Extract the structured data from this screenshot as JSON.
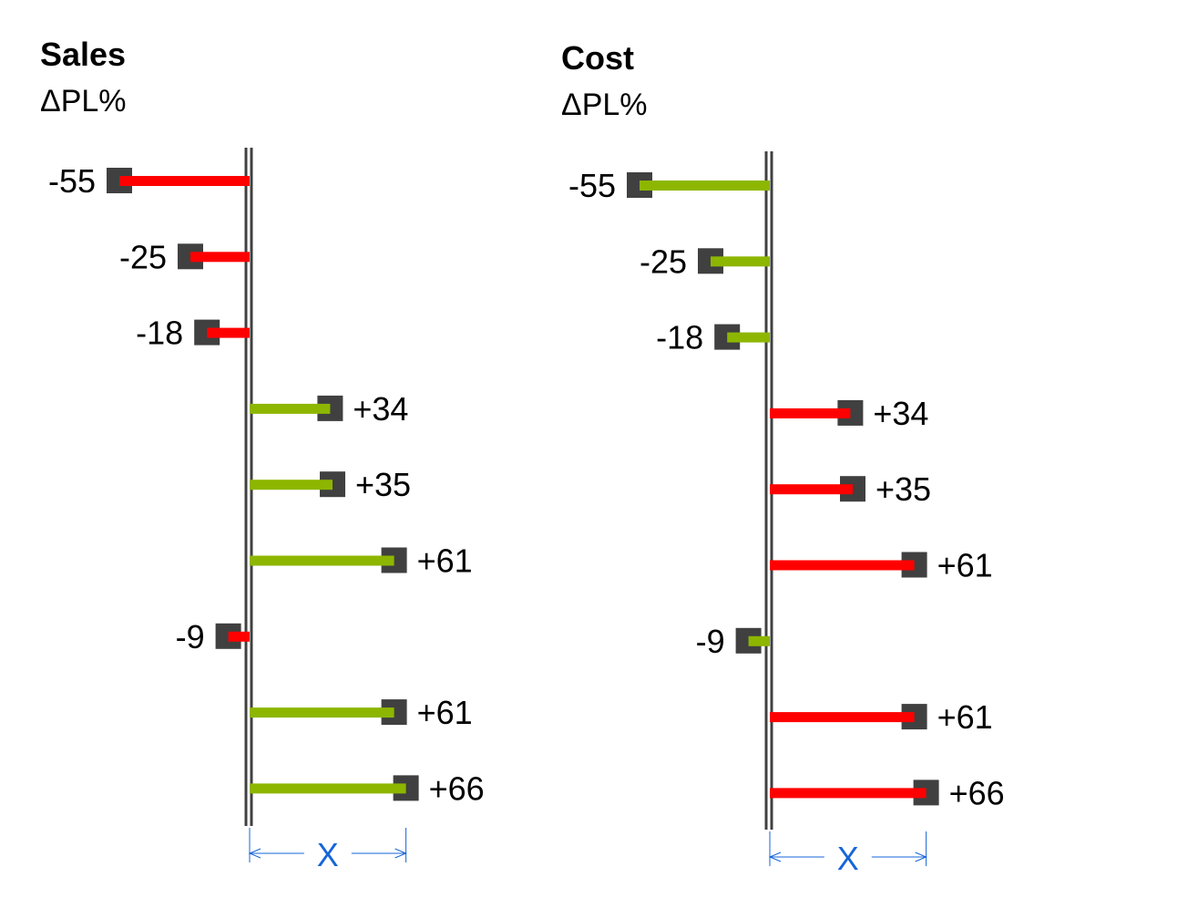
{
  "colors": {
    "positive_variance": "#8db600",
    "negative_variance": "#ff0000",
    "marker": "#404040",
    "axis": "#404040",
    "dimension": "#1565d8"
  },
  "chart_data": [
    {
      "type": "bar",
      "orientation": "horizontal",
      "title": "Sales",
      "subtitle": "ΔPL%",
      "values": [
        -55,
        -25,
        -18,
        34,
        35,
        61,
        -9,
        61,
        66
      ],
      "labels": [
        "-55",
        "-25",
        "-18",
        "+34",
        "+35",
        "+61",
        "-9",
        "+61",
        "+66"
      ],
      "color_rule": "positive green, negative red",
      "scale_marker": "X"
    },
    {
      "type": "bar",
      "orientation": "horizontal",
      "title": "Cost",
      "subtitle": "ΔPL%",
      "values": [
        -55,
        -25,
        -18,
        34,
        35,
        61,
        -9,
        61,
        66
      ],
      "labels": [
        "-55",
        "-25",
        "-18",
        "+34",
        "+35",
        "+61",
        "-9",
        "+61",
        "+66"
      ],
      "color_rule": "positive red, negative green",
      "scale_marker": "X"
    }
  ]
}
